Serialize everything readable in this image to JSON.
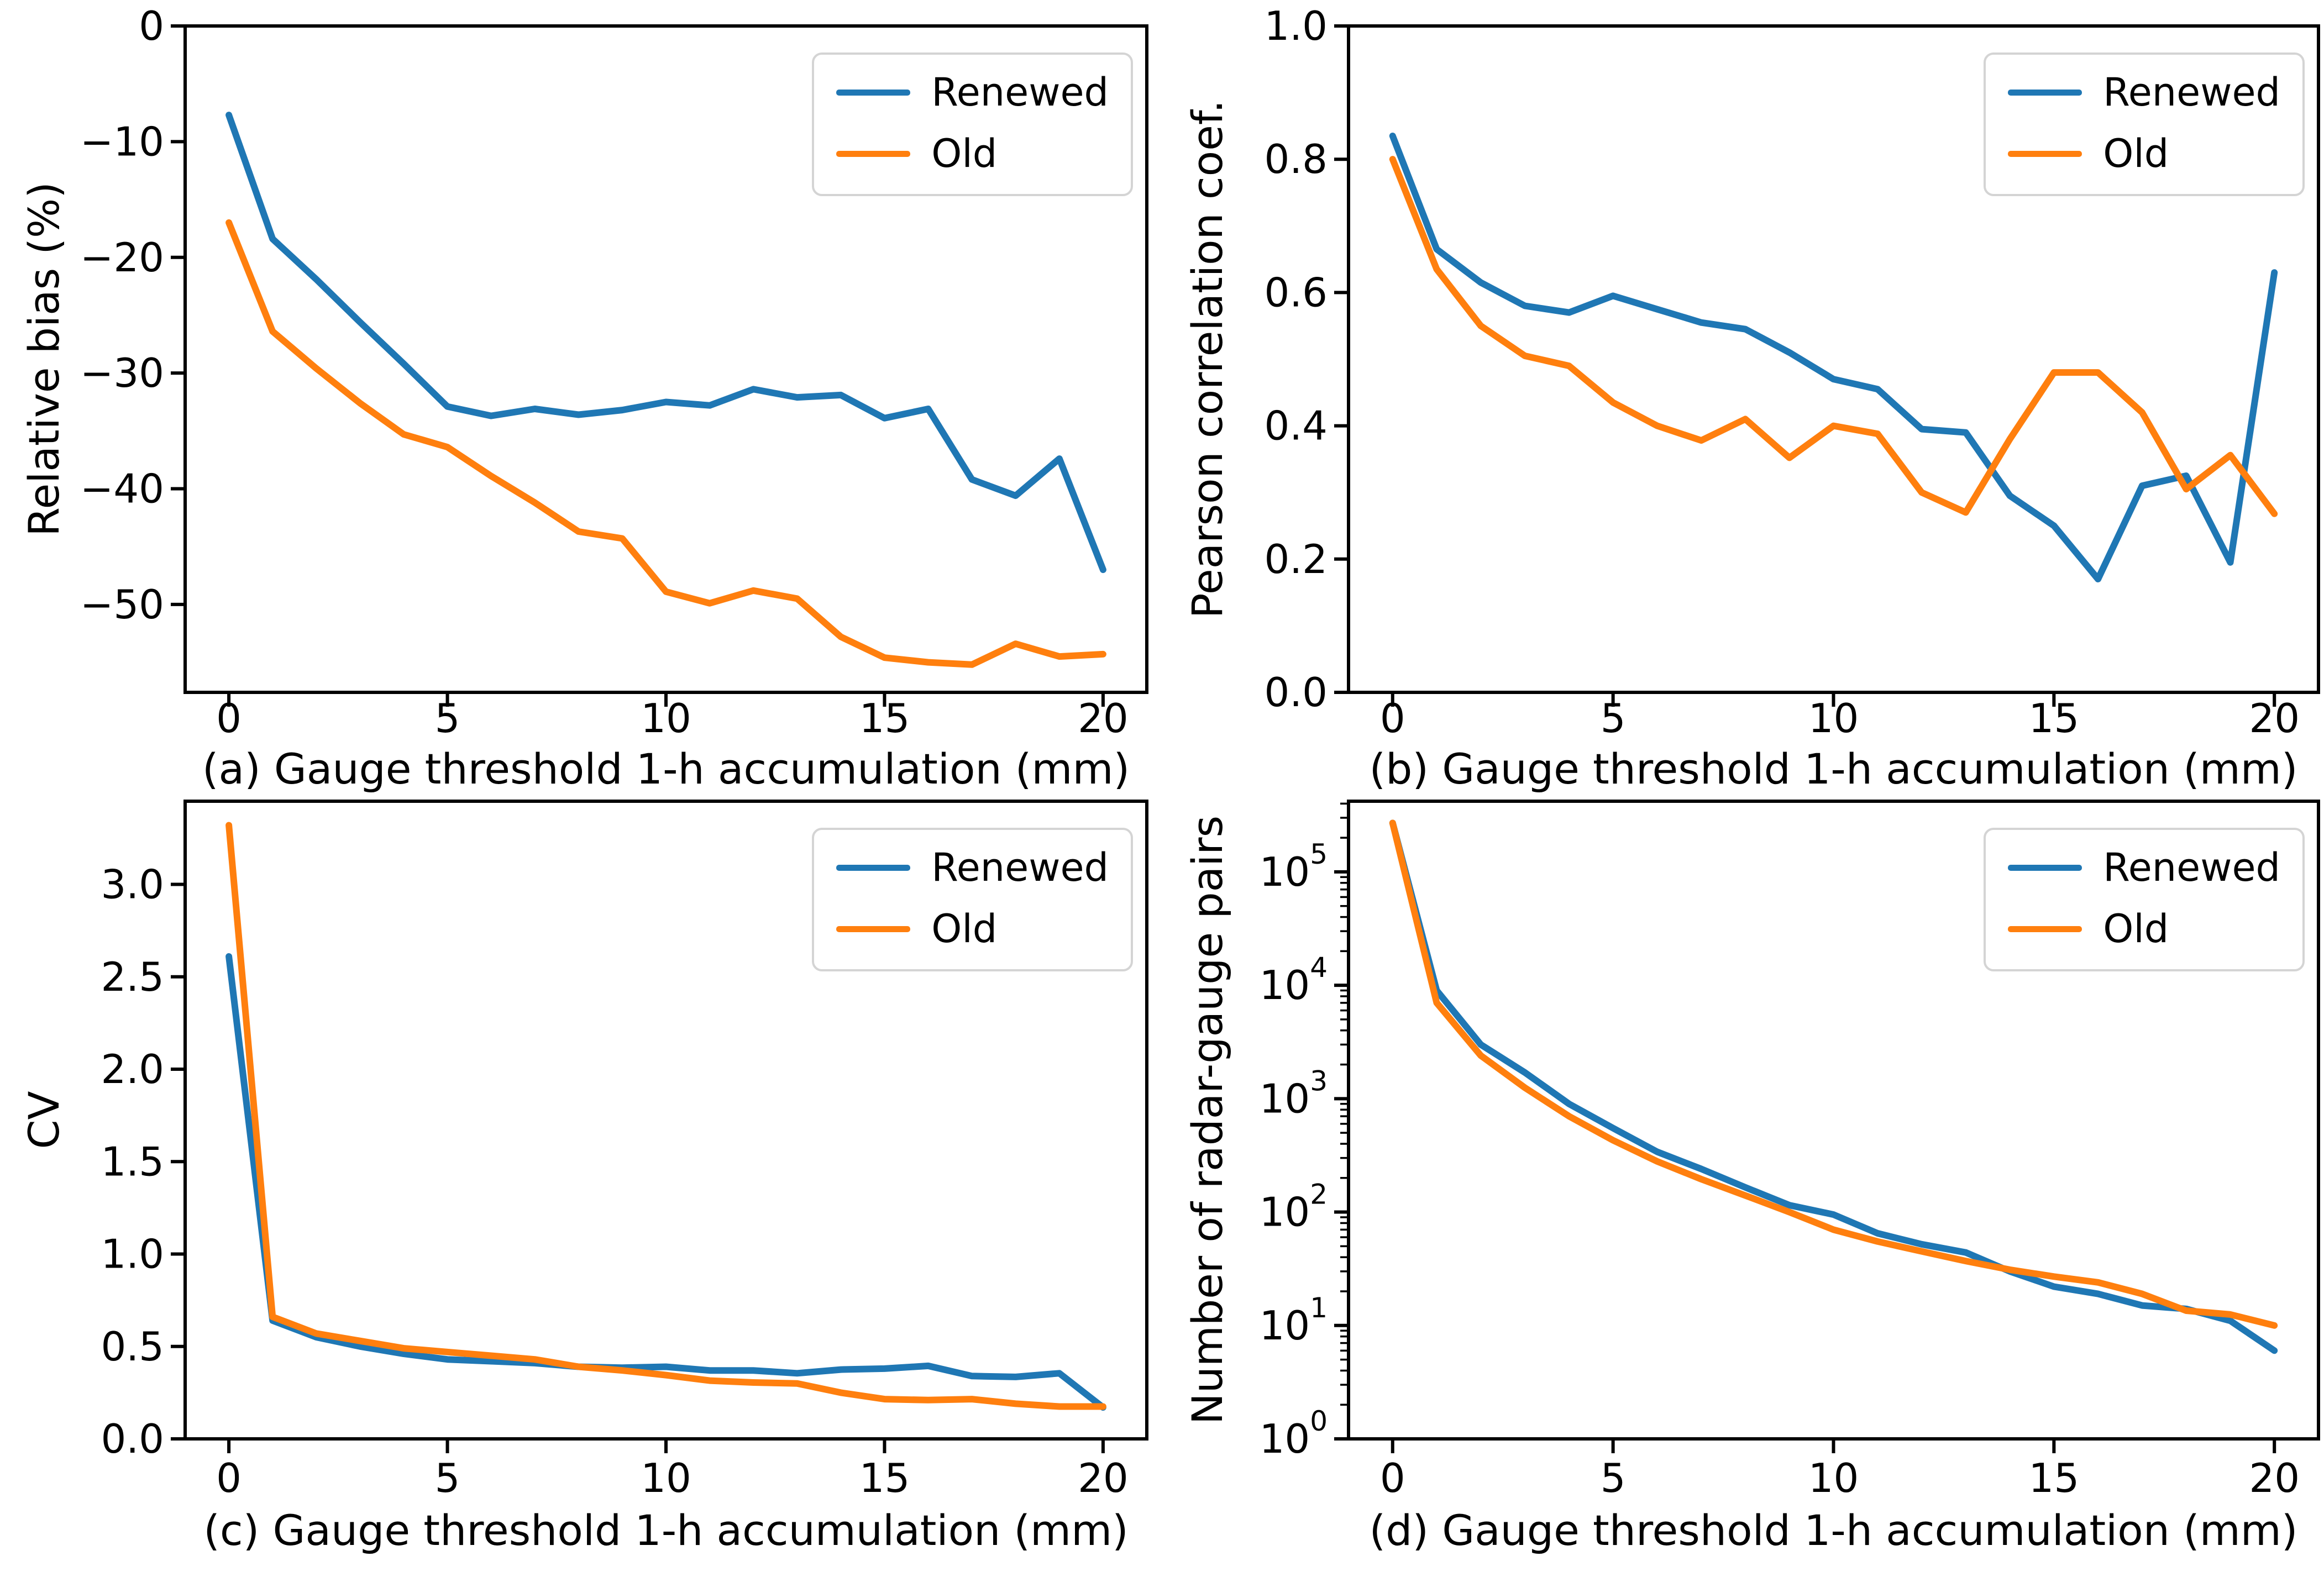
{
  "figure": {
    "legend": {
      "renewed": "Renewed",
      "old": "Old"
    },
    "colors": {
      "renewed": "#1f77b4",
      "old": "#ff7f0e",
      "axis": "#000000",
      "legend_border": "#d4d4d4"
    }
  },
  "chart_data": [
    {
      "id": "a",
      "type": "line",
      "xlabel": "(a) Gauge threshold 1-h accumulation (mm)",
      "ylabel": "Relative bias (%)",
      "x": [
        0,
        1,
        2,
        3,
        4,
        5,
        6,
        7,
        8,
        9,
        10,
        11,
        12,
        13,
        14,
        15,
        16,
        17,
        18,
        19,
        20
      ],
      "series": [
        {
          "name": "Renewed",
          "values": [
            -7.7,
            -18.4,
            -21.9,
            -25.6,
            -29.2,
            -32.9,
            -33.7,
            -33.1,
            -33.6,
            -33.2,
            -32.5,
            -32.8,
            -31.4,
            -32.1,
            -31.9,
            -33.9,
            -33.1,
            -39.2,
            -40.6,
            -37.4,
            -47.0
          ]
        },
        {
          "name": "Old",
          "values": [
            -17.0,
            -26.4,
            -29.6,
            -32.6,
            -35.3,
            -36.4,
            -38.9,
            -41.2,
            -43.7,
            -44.3,
            -48.9,
            -49.9,
            -48.8,
            -49.5,
            -52.8,
            -54.6,
            -55.0,
            -55.2,
            -53.4,
            -54.5,
            -54.3
          ]
        }
      ],
      "xlim": [
        -1,
        21
      ],
      "ylim": [
        -57.6,
        0
      ],
      "xticks": [
        0,
        5,
        10,
        15,
        20
      ],
      "yticks": [
        0,
        -10,
        -20,
        -30,
        -40,
        -50
      ],
      "ytick_labels": [
        "0",
        "−10",
        "−20",
        "−30",
        "−40",
        "−50"
      ],
      "yscale": "linear",
      "legend": [
        "Renewed",
        "Old"
      ],
      "legend_position": "upper right",
      "grid": false
    },
    {
      "id": "b",
      "type": "line",
      "xlabel": "(b) Gauge threshold 1-h accumulation (mm)",
      "ylabel": "Pearson correlation coef.",
      "x": [
        0,
        1,
        2,
        3,
        4,
        5,
        6,
        7,
        8,
        9,
        10,
        11,
        12,
        13,
        14,
        15,
        16,
        17,
        18,
        19,
        20
      ],
      "series": [
        {
          "name": "Renewed",
          "values": [
            0.835,
            0.665,
            0.615,
            0.58,
            0.57,
            0.595,
            0.575,
            0.555,
            0.545,
            0.51,
            0.47,
            0.455,
            0.395,
            0.39,
            0.295,
            0.25,
            0.17,
            0.31,
            0.325,
            0.195,
            0.63
          ]
        },
        {
          "name": "Old",
          "values": [
            0.8,
            0.635,
            0.55,
            0.505,
            0.49,
            0.435,
            0.4,
            0.378,
            0.41,
            0.352,
            0.4,
            0.388,
            0.3,
            0.27,
            0.38,
            0.48,
            0.48,
            0.42,
            0.305,
            0.356,
            0.268
          ]
        }
      ],
      "xlim": [
        -1,
        21
      ],
      "ylim": [
        0.0,
        1.0
      ],
      "xticks": [
        0,
        5,
        10,
        15,
        20
      ],
      "yticks": [
        0.0,
        0.2,
        0.4,
        0.6,
        0.8,
        1.0
      ],
      "ytick_labels": [
        "0.0",
        "0.2",
        "0.4",
        "0.6",
        "0.8",
        "1.0"
      ],
      "yscale": "linear",
      "legend": [
        "Renewed",
        "Old"
      ],
      "legend_position": "upper right",
      "grid": false
    },
    {
      "id": "c",
      "type": "line",
      "xlabel": "(c) Gauge threshold 1-h accumulation (mm)",
      "ylabel": "CV",
      "x": [
        0,
        1,
        2,
        3,
        4,
        5,
        6,
        7,
        8,
        9,
        10,
        11,
        12,
        13,
        14,
        15,
        16,
        17,
        18,
        19,
        20
      ],
      "series": [
        {
          "name": "Renewed",
          "values": [
            2.61,
            0.64,
            0.55,
            0.5,
            0.46,
            0.43,
            0.42,
            0.41,
            0.39,
            0.385,
            0.39,
            0.37,
            0.37,
            0.355,
            0.375,
            0.38,
            0.395,
            0.34,
            0.335,
            0.355,
            0.17
          ]
        },
        {
          "name": "Old",
          "values": [
            3.32,
            0.66,
            0.57,
            0.53,
            0.49,
            0.47,
            0.45,
            0.43,
            0.39,
            0.37,
            0.345,
            0.315,
            0.305,
            0.3,
            0.25,
            0.215,
            0.21,
            0.215,
            0.19,
            0.175,
            0.175
          ]
        }
      ],
      "xlim": [
        -1,
        21
      ],
      "ylim": [
        0.0,
        3.45
      ],
      "xticks": [
        0,
        5,
        10,
        15,
        20
      ],
      "yticks": [
        0.0,
        0.5,
        1.0,
        1.5,
        2.0,
        2.5,
        3.0
      ],
      "ytick_labels": [
        "0.0",
        "0.5",
        "1.0",
        "1.5",
        "2.0",
        "2.5",
        "3.0"
      ],
      "yscale": "linear",
      "legend": [
        "Renewed",
        "Old"
      ],
      "legend_position": "upper right",
      "grid": false
    },
    {
      "id": "d",
      "type": "line",
      "xlabel": "(d) Gauge threshold 1-h accumulation (mm)",
      "ylabel": "Number of radar-gauge pairs",
      "x": [
        0,
        1,
        2,
        3,
        4,
        5,
        6,
        7,
        8,
        9,
        10,
        11,
        12,
        13,
        14,
        15,
        16,
        17,
        18,
        19,
        20
      ],
      "series": [
        {
          "name": "Renewed",
          "values": [
            270000,
            9000,
            3000,
            1700,
            900,
            550,
            340,
            240,
            165,
            115,
            95,
            65,
            52,
            44,
            30,
            22,
            19,
            15,
            14,
            11,
            6
          ]
        },
        {
          "name": "Old",
          "values": [
            270000,
            7000,
            2400,
            1250,
            700,
            430,
            280,
            195,
            140,
            100,
            70,
            55,
            45,
            37,
            31,
            27,
            24,
            19,
            13.5,
            12.5,
            10
          ]
        }
      ],
      "xlim": [
        -1,
        21
      ],
      "ylim": [
        1,
        420000
      ],
      "xticks": [
        0,
        5,
        10,
        15,
        20
      ],
      "ytick_exponents": [
        0,
        1,
        2,
        3,
        4,
        5
      ],
      "ytick_labels": [
        "10^0",
        "10^1",
        "10^2",
        "10^3",
        "10^4",
        "10^5"
      ],
      "yscale": "log",
      "legend": [
        "Renewed",
        "Old"
      ],
      "legend_position": "upper right",
      "grid": false
    }
  ]
}
